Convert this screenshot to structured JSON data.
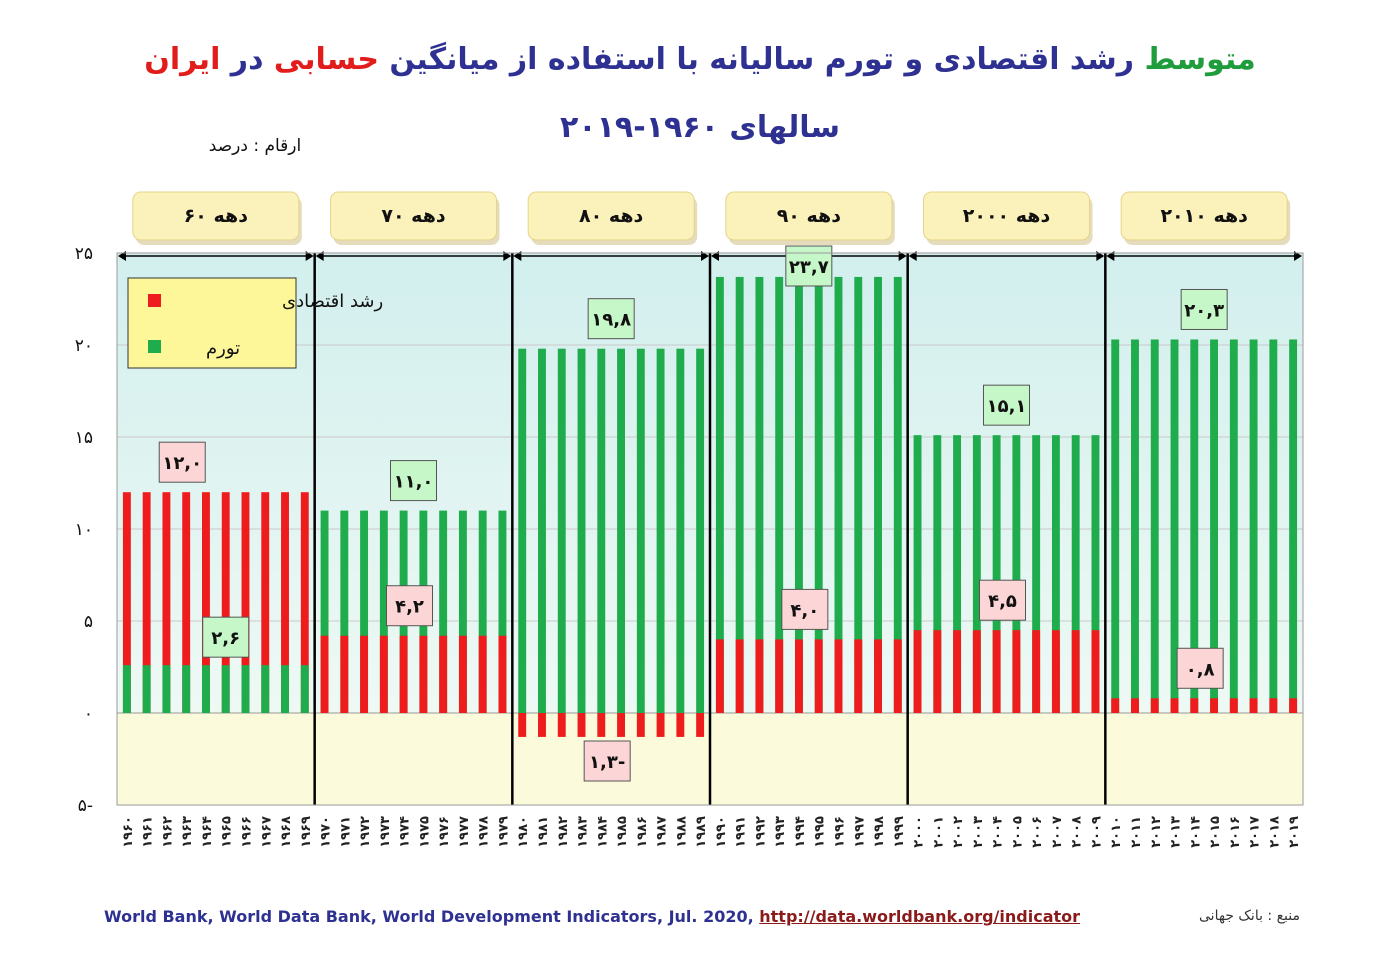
{
  "title": {
    "part1": "متوسط",
    "part2": " رشد اقتصادی و تورم سالیانه با استفاده از میانگین ",
    "part3": "حسابی",
    "part4": " در ",
    "part5": "ایران",
    "line2": "سالهای ۱۹۶۰-۲۰۱۹"
  },
  "units": "ارقام : درصد",
  "source_en_text": "World Bank, World Data Bank, World Development Indicators, Jul. 2020, ",
  "source_en_url": "http://data.worldbank.org/indicator",
  "source_fa": "منبع : بانک جهانی",
  "colors": {
    "growth": "#ee1c1c",
    "inflation": "#1fac4c",
    "plot_top": "#ddf3f0",
    "plot_bottom": "#fbfbdc",
    "legend_bg": "#fdf79a",
    "decade_box": "#fbf1ba",
    "growth_label_bg": "#fcd6d6",
    "inflation_label_bg": "#c6f7c8"
  },
  "legend": {
    "growth": "رشد اقتصادی",
    "inflation": "تورم"
  },
  "chart_data": {
    "type": "bar",
    "ylim": [
      -5,
      25
    ],
    "yticks": [
      25,
      20,
      15,
      10,
      5,
      0,
      -5
    ],
    "ytick_labels": [
      "۲۵",
      "۲۰",
      "۱۵",
      "۱۰",
      "۵",
      "۰",
      "۵-"
    ],
    "grid": true,
    "legend_position": "top-left",
    "decades": [
      {
        "label": "دهه ۶۰",
        "growth": 12.0,
        "inflation": 2.6,
        "growth_label": "۱۲,۰",
        "inflation_label": "۲,۶",
        "years": [
          "۱۹۶۰",
          "۱۹۶۱",
          "۱۹۶۲",
          "۱۹۶۳",
          "۱۹۶۴",
          "۱۹۶۵",
          "۱۹۶۶",
          "۱۹۶۷",
          "۱۹۶۸",
          "۱۹۶۹"
        ]
      },
      {
        "label": "دهه ۷۰",
        "growth": 4.2,
        "inflation": 11.0,
        "growth_label": "۴,۲",
        "inflation_label": "۱۱,۰",
        "years": [
          "۱۹۷۰",
          "۱۹۷۱",
          "۱۹۷۲",
          "۱۹۷۳",
          "۱۹۷۴",
          "۱۹۷۵",
          "۱۹۷۶",
          "۱۹۷۷",
          "۱۹۷۸",
          "۱۹۷۹"
        ]
      },
      {
        "label": "دهه ۸۰",
        "growth": -1.3,
        "inflation": 19.8,
        "growth_label": "۱,۳-",
        "inflation_label": "۱۹,۸",
        "years": [
          "۱۹۸۰",
          "۱۹۸۱",
          "۱۹۸۲",
          "۱۹۸۳",
          "۱۹۸۴",
          "۱۹۸۵",
          "۱۹۸۶",
          "۱۹۸۷",
          "۱۹۸۸",
          "۱۹۸۹"
        ]
      },
      {
        "label": "دهه ۹۰",
        "growth": 4.0,
        "inflation": 23.7,
        "growth_label": "۴,۰",
        "inflation_label": "۲۳,۷",
        "years": [
          "۱۹۹۰",
          "۱۹۹۱",
          "۱۹۹۲",
          "۱۹۹۳",
          "۱۹۹۴",
          "۱۹۹۵",
          "۱۹۹۶",
          "۱۹۹۷",
          "۱۹۹۸",
          "۱۹۹۹"
        ]
      },
      {
        "label": "دهه ۲۰۰۰",
        "growth": 4.5,
        "inflation": 15.1,
        "growth_label": "۴,۵",
        "inflation_label": "۱۵,۱",
        "years": [
          "۲۰۰۰",
          "۲۰۰۱",
          "۲۰۰۲",
          "۲۰۰۳",
          "۲۰۰۴",
          "۲۰۰۵",
          "۲۰۰۶",
          "۲۰۰۷",
          "۲۰۰۸",
          "۲۰۰۹"
        ]
      },
      {
        "label": "دهه ۲۰۱۰",
        "growth": 0.8,
        "inflation": 20.3,
        "growth_label": "۰,۸",
        "inflation_label": "۲۰,۳",
        "years": [
          "۲۰۱۰",
          "۲۰۱۱",
          "۲۰۱۲",
          "۲۰۱۳",
          "۲۰۱۴",
          "۲۰۱۵",
          "۲۰۱۶",
          "۲۰۱۷",
          "۲۰۱۸",
          "۲۰۱۹"
        ]
      }
    ]
  }
}
